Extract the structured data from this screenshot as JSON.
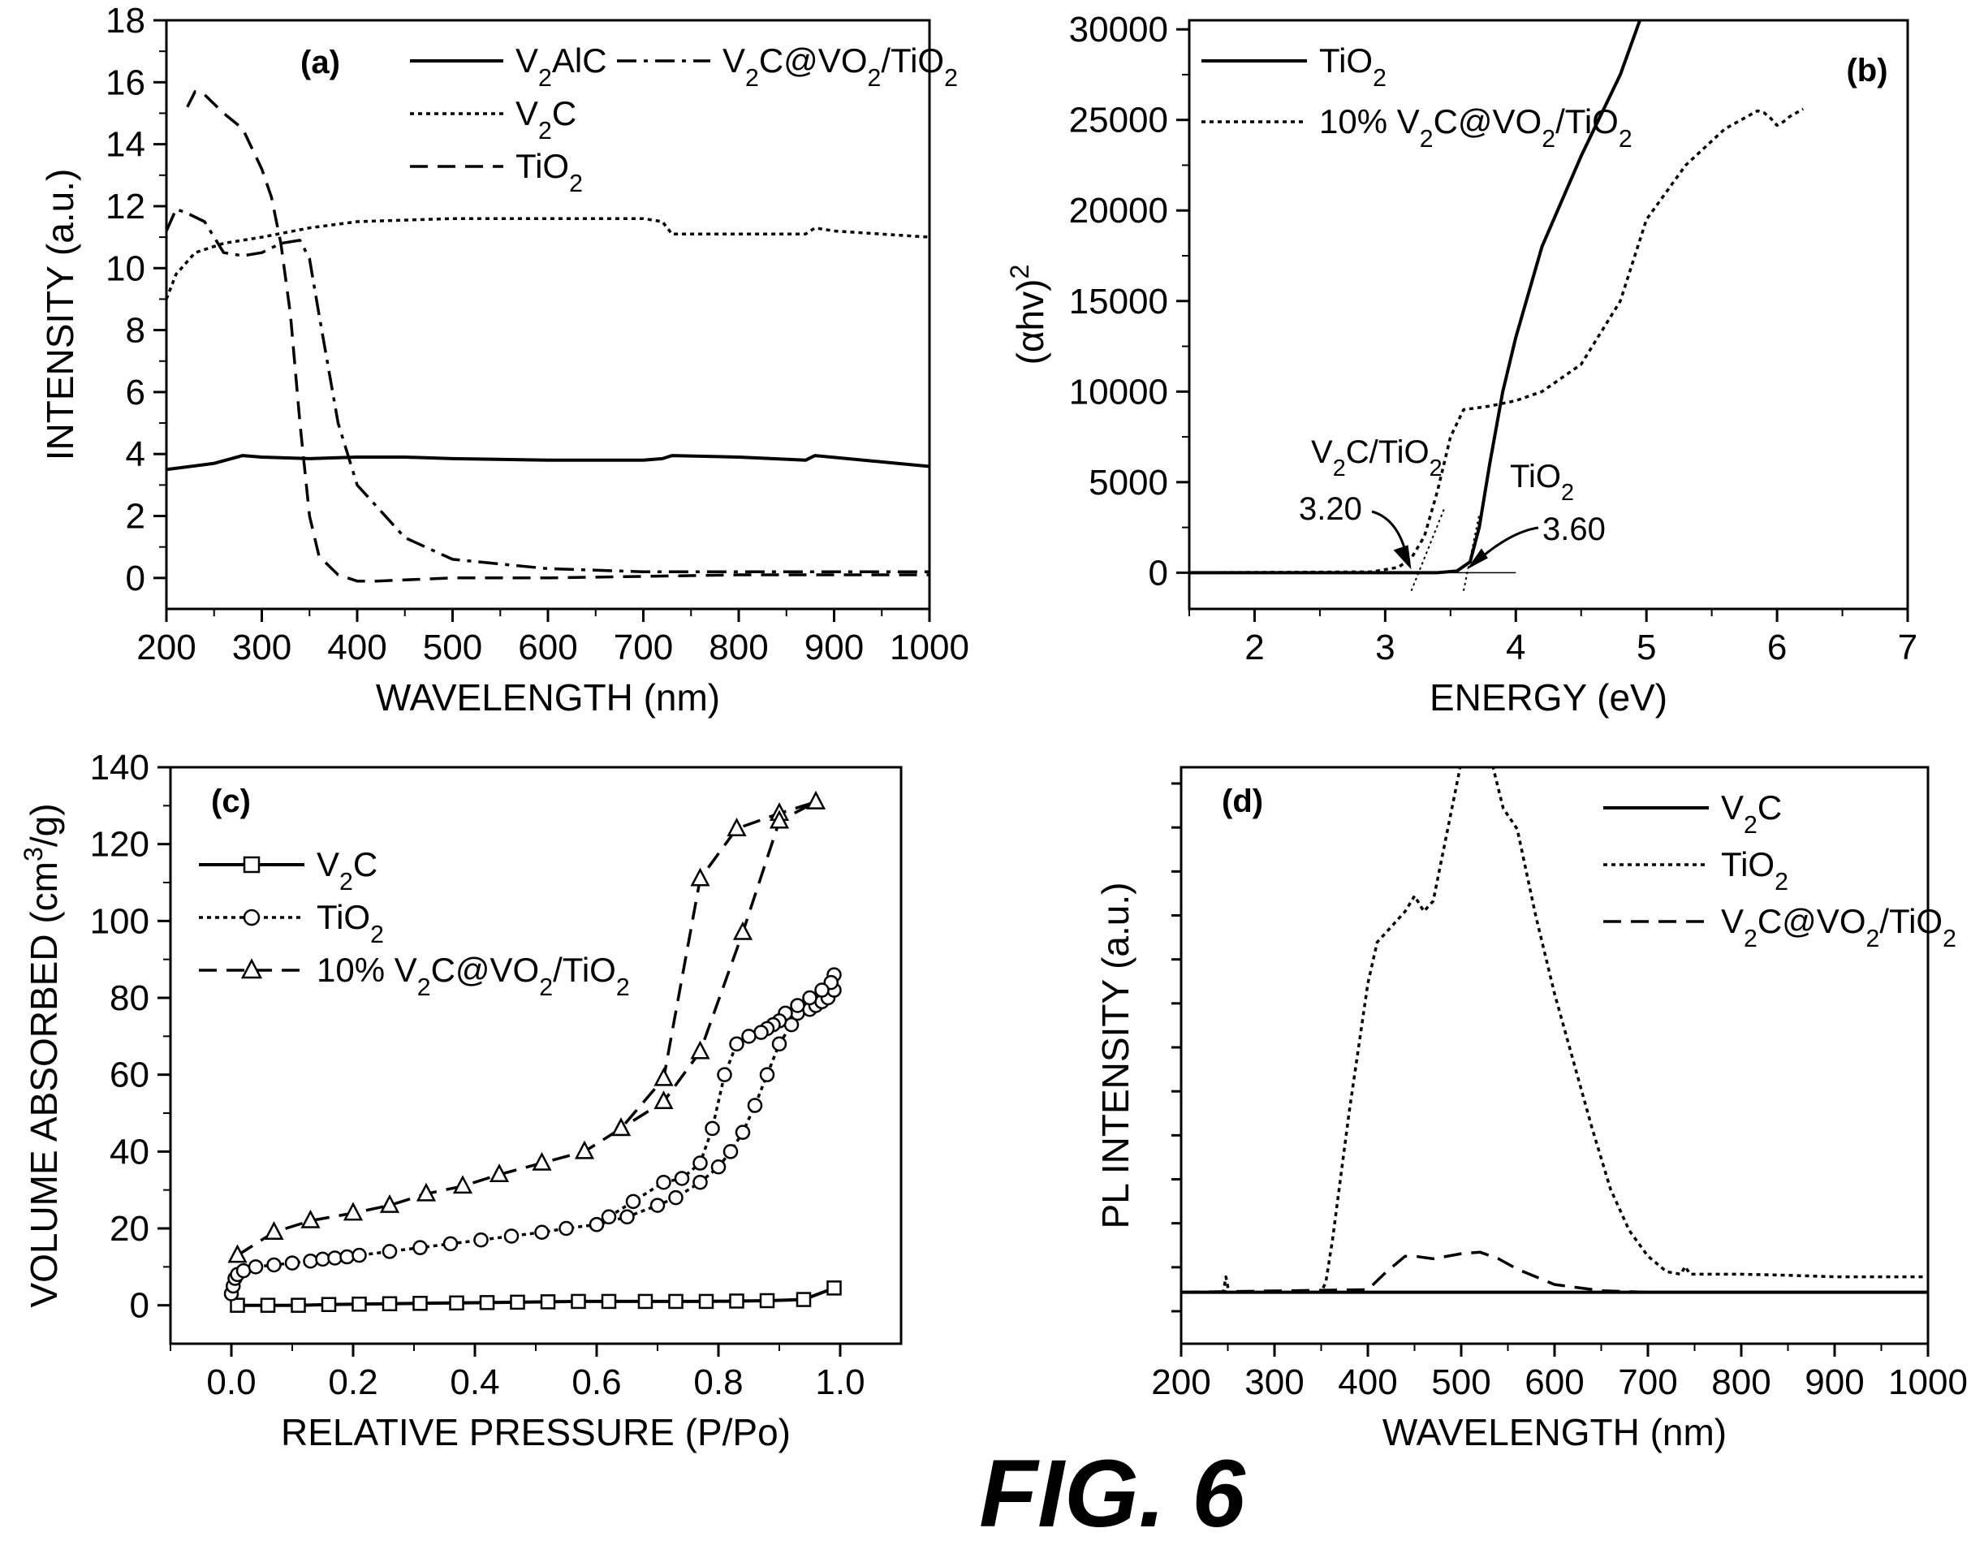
{
  "figure": {
    "title": "FIG. 6"
  },
  "chart_data": [
    {
      "panel": "(a)",
      "type": "line",
      "xlabel": "WAVELENGTH (nm)",
      "ylabel": "INTENSITY (a.u.)",
      "xlim": [
        200,
        1000
      ],
      "ylim": [
        -1,
        18
      ],
      "xticks": [
        200,
        300,
        400,
        500,
        600,
        700,
        800,
        900,
        1000
      ],
      "yticks": [
        0,
        2,
        4,
        6,
        8,
        10,
        12,
        14,
        16,
        18
      ],
      "legend_position": "top-right",
      "series": [
        {
          "name": "V2AlC",
          "style": "solid",
          "x": [
            200,
            250,
            280,
            300,
            350,
            400,
            450,
            500,
            600,
            700,
            720,
            730,
            800,
            870,
            880,
            1000
          ],
          "y": [
            3.5,
            3.7,
            3.95,
            3.9,
            3.85,
            3.9,
            3.9,
            3.85,
            3.8,
            3.8,
            3.85,
            3.95,
            3.9,
            3.8,
            3.95,
            3.6
          ]
        },
        {
          "name": "V2C",
          "style": "dotted",
          "x": [
            200,
            210,
            230,
            260,
            300,
            350,
            400,
            500,
            600,
            700,
            720,
            730,
            800,
            870,
            880,
            900,
            1000
          ],
          "y": [
            9.0,
            9.8,
            10.5,
            10.8,
            11.0,
            11.3,
            11.5,
            11.6,
            11.6,
            11.6,
            11.5,
            11.1,
            11.1,
            11.1,
            11.3,
            11.2,
            11.0
          ]
        },
        {
          "name": "TiO2",
          "style": "dashed",
          "x": [
            222,
            230,
            240,
            260,
            280,
            300,
            310,
            320,
            330,
            340,
            350,
            360,
            380,
            400,
            420,
            500,
            600,
            800,
            1000
          ],
          "y": [
            15.2,
            15.7,
            15.6,
            15.0,
            14.5,
            13.2,
            12.3,
            10.8,
            8.5,
            5.0,
            2.0,
            0.7,
            0.1,
            -0.1,
            -0.1,
            0.0,
            0.0,
            0.1,
            0.1
          ]
        },
        {
          "name": "V2C@VO2/TiO2",
          "style": "dashdot",
          "x": [
            200,
            210,
            220,
            240,
            260,
            280,
            300,
            320,
            340,
            350,
            360,
            380,
            400,
            450,
            500,
            600,
            700,
            800,
            1000
          ],
          "y": [
            11.2,
            11.9,
            11.8,
            11.5,
            10.5,
            10.4,
            10.5,
            10.8,
            10.9,
            10.3,
            8.5,
            5.0,
            3.0,
            1.3,
            0.6,
            0.3,
            0.2,
            0.2,
            0.2
          ]
        }
      ]
    },
    {
      "panel": "(b)",
      "type": "line",
      "xlabel": "ENERGY (eV)",
      "ylabel": "(αhv)2",
      "xlim": [
        1.5,
        7
      ],
      "ylim": [
        -2000,
        30500
      ],
      "xticks": [
        2,
        3,
        4,
        5,
        6,
        7
      ],
      "yticks": [
        0,
        5000,
        10000,
        15000,
        20000,
        25000,
        30000
      ],
      "legend_position": "top-left",
      "series": [
        {
          "name": "TiO2",
          "style": "solid",
          "x": [
            1.5,
            3.4,
            3.55,
            3.65,
            3.72,
            3.8,
            3.9,
            4.0,
            4.2,
            4.5,
            4.8,
            4.95
          ],
          "y": [
            0,
            0,
            100,
            600,
            2500,
            6000,
            10000,
            13000,
            18000,
            23000,
            27500,
            30500
          ]
        },
        {
          "name": "10% V2C@VO2/TiO2",
          "style": "dotted",
          "x": [
            1.5,
            2.9,
            3.1,
            3.2,
            3.3,
            3.4,
            3.5,
            3.6,
            3.8,
            4.0,
            4.2,
            4.5,
            4.8,
            5.0,
            5.3,
            5.6,
            5.85,
            5.9,
            5.95,
            6.0,
            6.05,
            6.1,
            6.2
          ],
          "y": [
            0,
            50,
            300,
            800,
            2000,
            4500,
            7500,
            9000,
            9200,
            9500,
            10000,
            11500,
            15000,
            19500,
            22500,
            24500,
            25500,
            25400,
            25100,
            24700,
            24900,
            25200,
            25600
          ]
        }
      ],
      "annotations": [
        {
          "text": "V2C/TiO2",
          "value": "3.20"
        },
        {
          "text": "TiO2",
          "value": "3.60"
        }
      ],
      "tangents": [
        {
          "from": [
            3.2,
            -1000
          ],
          "to": [
            3.45,
            3500
          ]
        },
        {
          "from": [
            3.6,
            -1000
          ],
          "to": [
            3.72,
            3200
          ]
        }
      ]
    },
    {
      "panel": "(c)",
      "type": "line",
      "xlabel": "RELATIVE PRESSURE (P/Po)",
      "ylabel": "VOLUME ABSORBED (cm3/g)",
      "xlim": [
        -0.1,
        1.1
      ],
      "ylim": [
        -10,
        140
      ],
      "xticks": [
        0.0,
        0.2,
        0.4,
        0.6,
        0.8,
        1.0
      ],
      "yticks": [
        0,
        20,
        40,
        60,
        80,
        100,
        120,
        140
      ],
      "legend_position": "top-left",
      "series": [
        {
          "name": "V2C",
          "marker": "square",
          "style": "solid",
          "x": [
            0.01,
            0.06,
            0.11,
            0.16,
            0.21,
            0.26,
            0.31,
            0.37,
            0.42,
            0.47,
            0.52,
            0.57,
            0.62,
            0.68,
            0.73,
            0.78,
            0.83,
            0.88,
            0.94,
            0.99
          ],
          "y": [
            0.0,
            0.0,
            0.0,
            0.2,
            0.3,
            0.4,
            0.5,
            0.6,
            0.7,
            0.8,
            0.9,
            1.0,
            1.0,
            1.0,
            1.0,
            1.0,
            1.1,
            1.2,
            1.5,
            4.5
          ]
        },
        {
          "name": "TiO2",
          "marker": "circle",
          "style": "dotted",
          "x": [
            0.0,
            0.003,
            0.006,
            0.01,
            0.02,
            0.04,
            0.07,
            0.1,
            0.13,
            0.15,
            0.17,
            0.19,
            0.21,
            0.26,
            0.31,
            0.36,
            0.41,
            0.46,
            0.51,
            0.55,
            0.6,
            0.65,
            0.7,
            0.73,
            0.77,
            0.8,
            0.82,
            0.84,
            0.86,
            0.88,
            0.9,
            0.92,
            0.93,
            0.95,
            0.96,
            0.97,
            0.98,
            0.99,
            0.99,
            0.985,
            0.97,
            0.95,
            0.93,
            0.91,
            0.9,
            0.89,
            0.88,
            0.87,
            0.85,
            0.83,
            0.81,
            0.79,
            0.77,
            0.74,
            0.71,
            0.66,
            0.62,
            0.6
          ],
          "y": [
            3,
            5,
            7,
            8,
            9,
            10,
            10.5,
            11,
            11.5,
            12,
            12.3,
            12.6,
            13,
            14,
            15,
            16,
            17,
            18,
            19,
            20,
            21,
            23,
            26,
            28,
            32,
            36,
            40,
            45,
            52,
            60,
            68,
            73,
            76,
            77,
            78,
            79,
            80,
            82,
            86,
            84,
            82,
            80,
            78,
            76,
            74,
            73,
            72,
            71,
            70,
            68,
            60,
            46,
            37,
            33,
            32,
            27,
            23,
            21
          ]
        },
        {
          "name": "10% V2C@VO2/TiO2",
          "marker": "triangle",
          "style": "dashed",
          "x": [
            0.01,
            0.07,
            0.13,
            0.2,
            0.26,
            0.32,
            0.38,
            0.44,
            0.51,
            0.58,
            0.64,
            0.71,
            0.77,
            0.83,
            0.9,
            0.96,
            0.9,
            0.84,
            0.77,
            0.71,
            0.64
          ],
          "y": [
            13,
            19,
            22,
            24,
            26,
            29,
            31,
            34,
            37,
            40,
            46,
            59,
            111,
            124,
            128,
            131,
            126,
            97,
            66,
            53,
            46
          ]
        }
      ]
    },
    {
      "panel": "(d)",
      "type": "line",
      "xlabel": "WAVELENGTH (nm)",
      "ylabel": "PL INTENSITY (a.u.)",
      "xlim": [
        200,
        1000
      ],
      "ylim": [
        -0.1,
        1.02
      ],
      "xticks": [
        200,
        300,
        400,
        500,
        600,
        700,
        800,
        900,
        1000
      ],
      "legend_position": "top-right",
      "series": [
        {
          "name": "V2C",
          "style": "solid",
          "x": [
            200,
            1000
          ],
          "y": [
            0.0,
            0.0
          ]
        },
        {
          "name": "TiO2",
          "style": "dotted",
          "x": [
            200,
            245,
            248,
            251,
            350,
            355,
            362,
            380,
            400,
            410,
            420,
            440,
            450,
            460,
            470,
            480,
            500,
            520,
            530,
            545,
            560,
            580,
            600,
            620,
            640,
            660,
            680,
            700,
            720,
            735,
            740,
            745,
            760,
            800,
            850,
            900,
            950,
            1000
          ],
          "y": [
            0.0,
            0.0,
            0.03,
            0.0,
            0.0,
            0.02,
            0.1,
            0.35,
            0.6,
            0.68,
            0.7,
            0.74,
            0.77,
            0.74,
            0.76,
            0.85,
            1.03,
            1.1,
            1.05,
            0.94,
            0.9,
            0.73,
            0.58,
            0.45,
            0.32,
            0.2,
            0.12,
            0.07,
            0.04,
            0.035,
            0.05,
            0.035,
            0.035,
            0.035,
            0.033,
            0.03,
            0.03,
            0.03
          ]
        },
        {
          "name": "V2C@VO2/TiO2",
          "style": "dashed",
          "x": [
            200,
            400,
            420,
            440,
            450,
            470,
            500,
            520,
            540,
            560,
            600,
            650,
            700,
            1000
          ],
          "y": [
            0.0,
            0.005,
            0.04,
            0.07,
            0.07,
            0.065,
            0.075,
            0.078,
            0.065,
            0.045,
            0.015,
            0.003,
            0.0,
            0.0
          ]
        }
      ]
    }
  ]
}
